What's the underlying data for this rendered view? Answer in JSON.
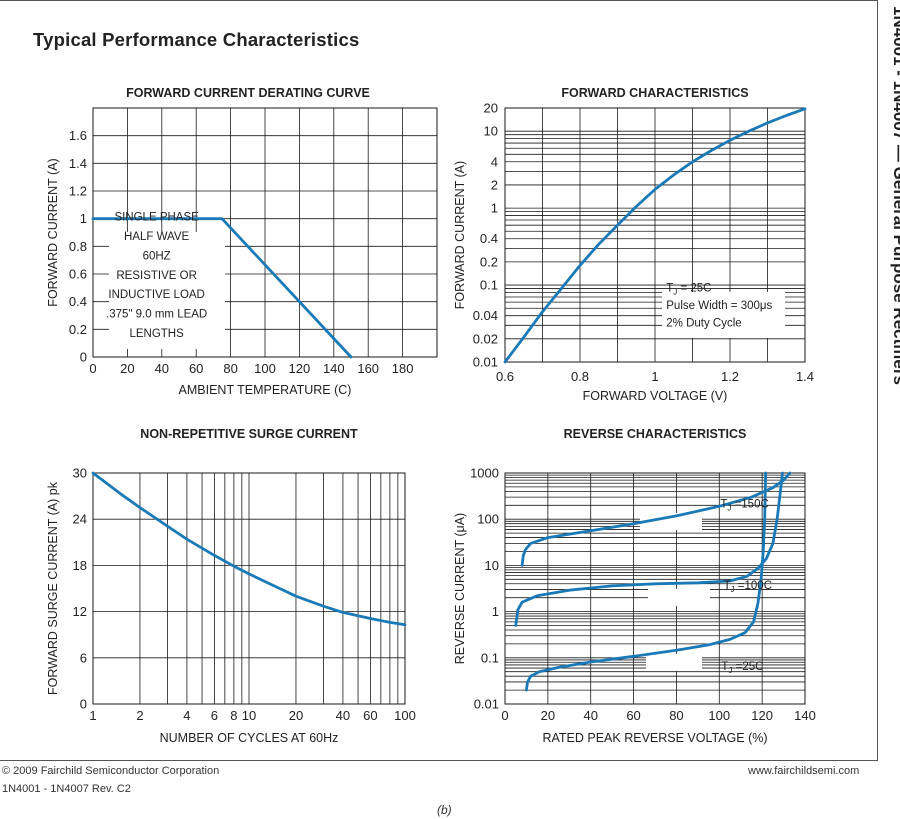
{
  "page": {
    "heading": "Typical Performance Characteristics",
    "side_title": "1N4001 - 1N4007 — General Purpose Rectifiers",
    "copyright": "© 2009 Fairchild Semiconductor Corporation",
    "part_rev": "1N4001 - 1N4007 Rev. C2",
    "website": "www.fairchildsemi.com",
    "caption": "(b)"
  },
  "colors": {
    "curve": "#1a7ab8",
    "grid": "#1a1a1a",
    "text": "#222222"
  },
  "chart_data": [
    {
      "id": "derating",
      "type": "line",
      "title": "FORWARD CURRENT DERATING CURVE",
      "xlabel": "AMBIENT TEMPERATURE (C)",
      "ylabel": "FORWARD CURRENT (A)",
      "xlim": [
        0,
        200
      ],
      "ylim": [
        0,
        1.8
      ],
      "xscale": "linear",
      "yscale": "linear",
      "grid": true,
      "x_ticks": [
        0,
        20,
        40,
        60,
        80,
        100,
        120,
        140,
        160,
        180
      ],
      "x_tick_labels": [
        "0",
        "20",
        "40",
        "60",
        "80",
        "100",
        "120",
        "140",
        "160",
        "180"
      ],
      "y_ticks": [
        0,
        0.2,
        0.4,
        0.6,
        0.8,
        1,
        1.2,
        1.4,
        1.6
      ],
      "y_tick_labels": [
        "0",
        "0.2",
        "0.4",
        "0.6",
        "0.8",
        "1",
        "1.2",
        "1.4",
        "1.6"
      ],
      "series": [
        {
          "label": "",
          "points": [
            [
              0,
              1.0
            ],
            [
              75,
              1.0
            ],
            [
              150,
              0
            ]
          ]
        }
      ],
      "annotations": [
        {
          "text": "SINGLE PHASE",
          "x": 37,
          "y": 0.985
        },
        {
          "text": "HALF WAVE",
          "x": 37,
          "y": 0.845
        },
        {
          "text": "60HZ",
          "x": 37,
          "y": 0.705
        },
        {
          "text": "RESISTIVE OR",
          "x": 37,
          "y": 0.565
        },
        {
          "text": "INDUCTIVE LOAD",
          "x": 37,
          "y": 0.425
        },
        {
          "text": ".375\" 9.0 mm LEAD",
          "x": 37,
          "y": 0.285
        },
        {
          "text": "LENGTHS",
          "x": 37,
          "y": 0.145
        }
      ]
    },
    {
      "id": "forward",
      "type": "line",
      "title": "FORWARD CHARACTERISTICS",
      "xlabel": "FORWARD VOLTAGE (V)",
      "ylabel": "FORWARD CURRENT (A)",
      "xlim": [
        0.6,
        1.4
      ],
      "ylim": [
        0.01,
        20
      ],
      "xscale": "linear",
      "yscale": "log",
      "grid": true,
      "x_ticks": [
        0.6,
        0.8,
        1.0,
        1.2,
        1.4
      ],
      "x_tick_labels": [
        "0.6",
        "0.8",
        "1",
        "1.2",
        "1.4"
      ],
      "x_minor_ticks": [
        0.7,
        0.9,
        1.1,
        1.3
      ],
      "y_ticks": [
        0.01,
        0.02,
        0.04,
        0.1,
        0.2,
        0.4,
        1,
        2,
        4,
        10,
        20
      ],
      "y_tick_labels": [
        "0.01",
        "0.02",
        "0.04",
        "0.1",
        "0.2",
        "0.4",
        "1",
        "2",
        "4",
        "10",
        "20"
      ],
      "series": [
        {
          "label": "",
          "points": [
            [
              0.6,
              0.01
            ],
            [
              0.65,
              0.021
            ],
            [
              0.7,
              0.045
            ],
            [
              0.75,
              0.09
            ],
            [
              0.8,
              0.18
            ],
            [
              0.85,
              0.34
            ],
            [
              0.9,
              0.6
            ],
            [
              0.95,
              1.05
            ],
            [
              1.0,
              1.75
            ],
            [
              1.05,
              2.7
            ],
            [
              1.1,
              4.0
            ],
            [
              1.15,
              5.6
            ],
            [
              1.2,
              7.6
            ],
            [
              1.25,
              10.0
            ],
            [
              1.3,
              12.8
            ],
            [
              1.35,
              16.0
            ],
            [
              1.4,
              19.5
            ]
          ]
        }
      ],
      "annotations": [
        {
          "text": "T",
          "sub": "J",
          "rest": " = 25C",
          "x": 1.03,
          "y": 0.082
        },
        {
          "text": "Pulse Width = 300",
          "sub": "",
          "rest": "μs",
          "x": 1.03,
          "y": 0.049
        },
        {
          "text": "2% Duty Cycle",
          "sub": "",
          "rest": "",
          "x": 1.03,
          "y": 0.029
        }
      ]
    },
    {
      "id": "surge",
      "type": "line",
      "title": "NON-REPETITIVE SURGE CURRENT",
      "xlabel": "NUMBER OF CYCLES AT 60Hz",
      "ylabel": "FORWARD SURGE CURRENT (A) pk",
      "xlim": [
        1,
        100
      ],
      "ylim": [
        0,
        30
      ],
      "xscale": "log",
      "yscale": "linear",
      "grid": true,
      "x_ticks": [
        1,
        2,
        4,
        6,
        8,
        10,
        20,
        40,
        60,
        100
      ],
      "x_tick_labels": [
        "1",
        "2",
        "4",
        "6",
        "8",
        "10",
        "20",
        "40",
        "60",
        "100"
      ],
      "y_ticks": [
        0,
        6,
        12,
        18,
        24,
        30
      ],
      "y_tick_labels": [
        "0",
        "6",
        "12",
        "18",
        "24",
        "30"
      ],
      "series": [
        {
          "label": "",
          "points": [
            [
              1,
              30
            ],
            [
              1.5,
              27.3
            ],
            [
              2,
              25.5
            ],
            [
              3,
              23.1
            ],
            [
              4,
              21.4
            ],
            [
              6,
              19.3
            ],
            [
              8,
              17.9
            ],
            [
              10,
              16.9
            ],
            [
              15,
              15.2
            ],
            [
              20,
              14.0
            ],
            [
              30,
              12.7
            ],
            [
              40,
              11.9
            ],
            [
              60,
              11.1
            ],
            [
              80,
              10.6
            ],
            [
              100,
              10.3
            ]
          ]
        }
      ],
      "annotations": []
    },
    {
      "id": "reverse",
      "type": "line",
      "title": "REVERSE CHARACTERISTICS",
      "xlabel": "RATED PEAK REVERSE VOLTAGE (%)",
      "ylabel": "REVERSE CURRENT (μA)",
      "xlim": [
        0,
        140
      ],
      "ylim": [
        0.01,
        1000
      ],
      "xscale": "linear",
      "yscale": "log",
      "grid": true,
      "x_ticks": [
        0,
        20,
        40,
        60,
        80,
        100,
        120,
        140
      ],
      "x_tick_labels": [
        "0",
        "20",
        "40",
        "60",
        "80",
        "100",
        "120",
        "140"
      ],
      "y_ticks": [
        0.01,
        0.1,
        1,
        10,
        100,
        1000
      ],
      "y_tick_labels": [
        "0.01",
        "0.1",
        "1",
        "10",
        "100",
        "1000"
      ],
      "series": [
        {
          "label": "T_J = 150C",
          "points": [
            [
              8,
              10
            ],
            [
              8.5,
              16
            ],
            [
              9.5,
              22
            ],
            [
              12,
              30
            ],
            [
              20,
              40
            ],
            [
              40,
              56
            ],
            [
              60,
              80
            ],
            [
              80,
              118
            ],
            [
              100,
              190
            ],
            [
              115,
              300
            ],
            [
              125,
              480
            ],
            [
              130,
              700
            ],
            [
              133,
              1000
            ]
          ]
        },
        {
          "label": "T_J = 100C",
          "points": [
            [
              5,
              0.5
            ],
            [
              6,
              1.1
            ],
            [
              8,
              1.6
            ],
            [
              15,
              2.2
            ],
            [
              30,
              2.9
            ],
            [
              50,
              3.6
            ],
            [
              70,
              4.0
            ],
            [
              90,
              4.2
            ],
            [
              105,
              4.6
            ],
            [
              113,
              5.8
            ],
            [
              118,
              8.6
            ],
            [
              122,
              14
            ],
            [
              125,
              30
            ],
            [
              127,
              100
            ],
            [
              128.5,
              400
            ],
            [
              129.5,
              1000
            ]
          ]
        },
        {
          "label": "T_J = 25C",
          "points": [
            [
              10,
              0.02
            ],
            [
              10.5,
              0.03
            ],
            [
              12,
              0.04
            ],
            [
              16,
              0.05
            ],
            [
              25,
              0.062
            ],
            [
              40,
              0.081
            ],
            [
              60,
              0.108
            ],
            [
              80,
              0.145
            ],
            [
              95,
              0.19
            ],
            [
              105,
              0.25
            ],
            [
              112,
              0.35
            ],
            [
              116,
              0.6
            ],
            [
              118,
              1.5
            ],
            [
              119.5,
              5
            ],
            [
              120.5,
              20
            ],
            [
              121.2,
              100
            ],
            [
              121.6,
              1000
            ]
          ]
        }
      ],
      "annotations": [
        {
          "text": "T",
          "sub": "J",
          "rest": " =150C",
          "x": 100.5,
          "y": 180
        },
        {
          "text": "T",
          "sub": "J",
          "rest": " =100C",
          "x": 102,
          "y": 3.1
        },
        {
          "text": "T",
          "sub": "J",
          "rest": " =25C",
          "x": 101,
          "y": 0.055
        }
      ]
    }
  ]
}
